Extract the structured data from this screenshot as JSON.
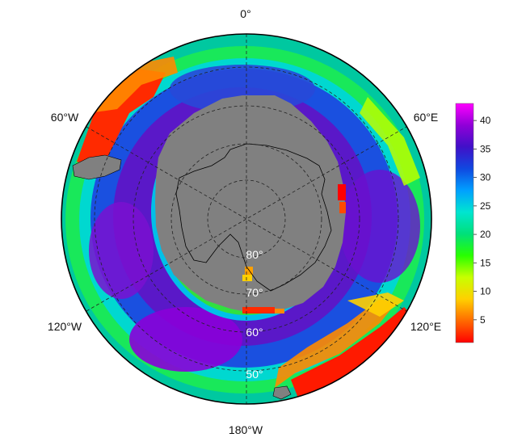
{
  "map": {
    "projection": "south-polar-stereographic",
    "longitude_labels": {
      "top": "0°",
      "upper_left": "60°W",
      "upper_right": "60°E",
      "lower_left": "120°W",
      "lower_right": "120°E",
      "bottom": "180°W"
    },
    "latitude_labels": [
      "80°",
      "70°",
      "60°",
      "50°"
    ],
    "land_color": "#808080",
    "graticule": "dashed"
  },
  "colorbar": {
    "ticks": [
      "40",
      "35",
      "30",
      "25",
      "20",
      "15",
      "10",
      "5"
    ],
    "range": [
      1,
      43
    ],
    "colors": [
      "#ff0000",
      "#ff6a00",
      "#ffd000",
      "#c8ff00",
      "#28ff00",
      "#00e07a",
      "#00e5d0",
      "#00a0ff",
      "#1048e0",
      "#4010c8",
      "#9000d8",
      "#ff00ff"
    ]
  }
}
